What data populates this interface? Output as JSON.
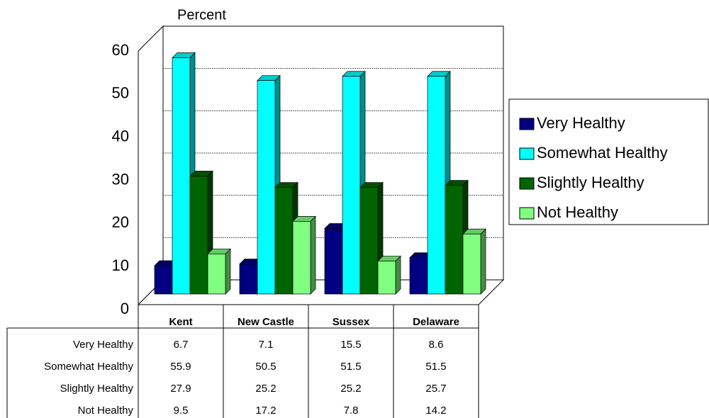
{
  "chart_data": {
    "type": "bar3d",
    "y_axis_label": "Percent",
    "categories": [
      "Kent",
      "New Castle",
      "Sussex",
      "Delaware"
    ],
    "series": [
      {
        "name": "Very Healthy",
        "color": "#000080",
        "values": [
          6.7,
          7.1,
          15.5,
          8.6
        ]
      },
      {
        "name": "Somewhat Healthy",
        "color": "#00ffff",
        "values": [
          55.9,
          50.5,
          51.5,
          51.5
        ]
      },
      {
        "name": "Slightly Healthy",
        "color": "#006400",
        "values": [
          27.9,
          25.2,
          25.2,
          25.7
        ]
      },
      {
        "name": "Not Healthy",
        "color": "#80ff80",
        "values": [
          9.5,
          17.2,
          7.8,
          14.2
        ]
      }
    ],
    "ylim": [
      0,
      60
    ],
    "yticks": [
      0,
      10,
      20,
      30,
      40,
      50,
      60
    ],
    "grid": true,
    "legend": "right"
  }
}
